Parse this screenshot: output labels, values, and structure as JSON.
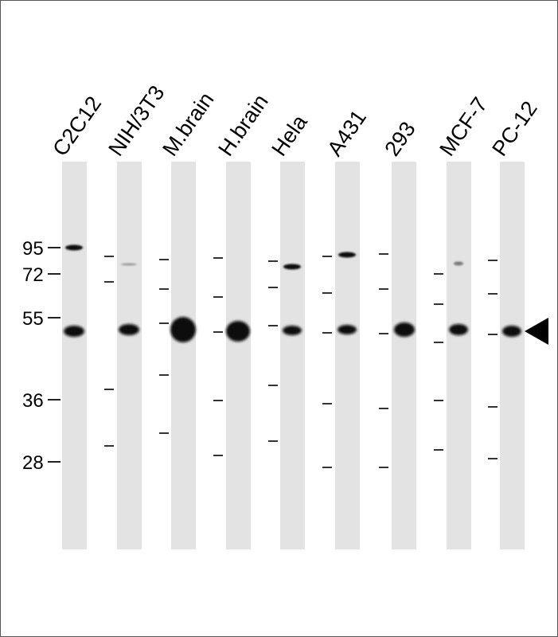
{
  "lanes": [
    {
      "label": "C2C12"
    },
    {
      "label": "NIH/3T3"
    },
    {
      "label": "M.brain"
    },
    {
      "label": "H.brain"
    },
    {
      "label": "Hela"
    },
    {
      "label": "A431"
    },
    {
      "label": "293"
    },
    {
      "label": "MCF-7"
    },
    {
      "label": "PC-12"
    }
  ],
  "mw_markers": [
    {
      "label": "95"
    },
    {
      "label": "72"
    },
    {
      "label": "55"
    },
    {
      "label": "36"
    },
    {
      "label": "28"
    }
  ],
  "target_arrow": {
    "icon": "arrowhead-left-icon"
  },
  "colors": {
    "lane": "#e3e3e3",
    "band": "#111111",
    "marker": "#222222"
  }
}
